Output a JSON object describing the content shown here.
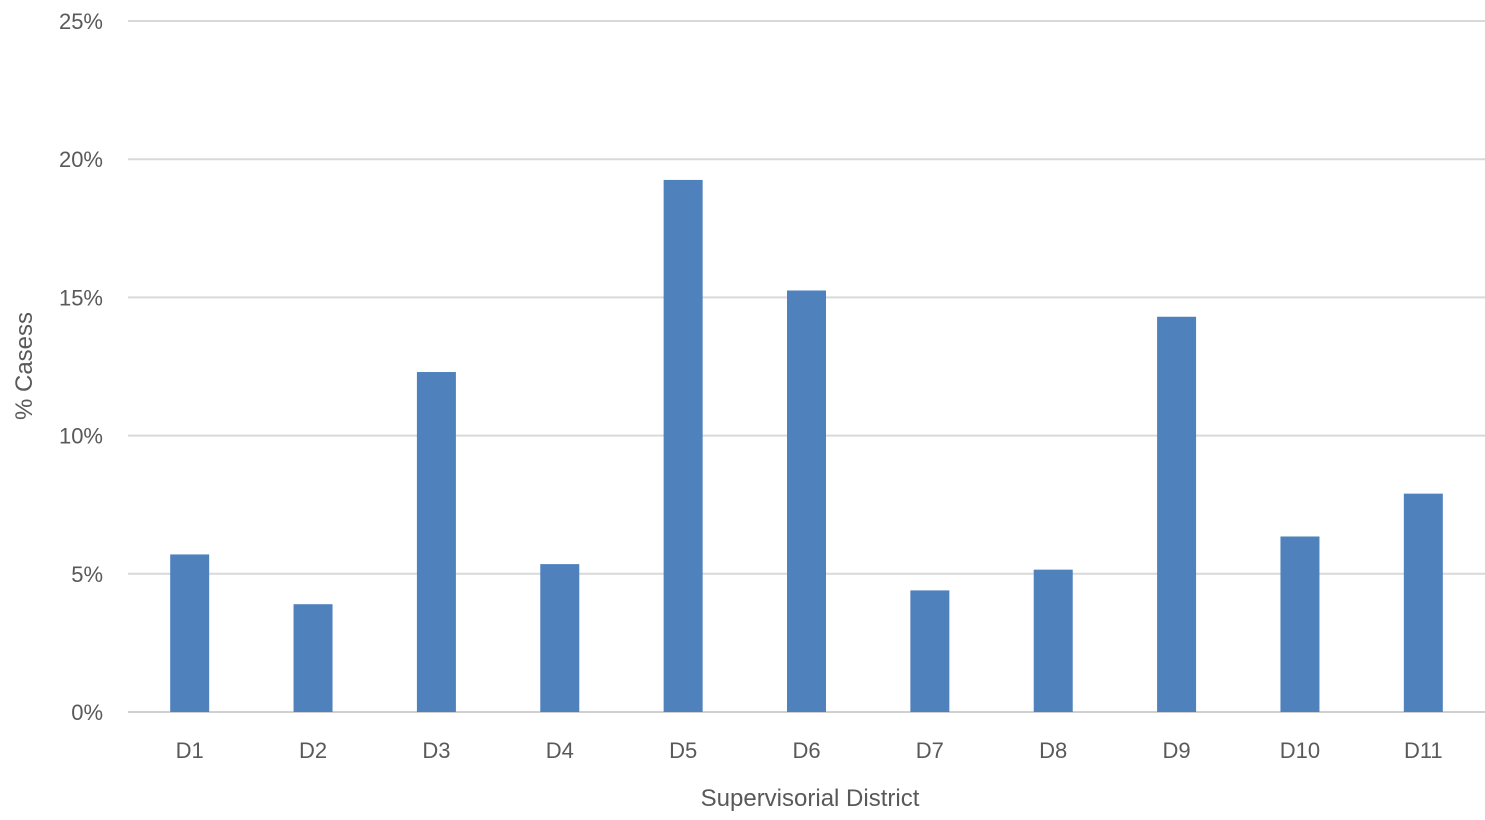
{
  "chart_data": {
    "type": "bar",
    "categories": [
      "D1",
      "D2",
      "D3",
      "D4",
      "D5",
      "D6",
      "D7",
      "D8",
      "D9",
      "D10",
      "D11"
    ],
    "series": [
      {
        "values": [
          5.7,
          3.9,
          12.3,
          5.35,
          19.25,
          15.25,
          4.4,
          5.15,
          14.3,
          6.35,
          7.9
        ],
        "color": "#4f81bd"
      }
    ],
    "ylim": [
      0,
      25
    ],
    "yticks": [
      0,
      5,
      10,
      15,
      20,
      25
    ],
    "ytick_labels": [
      "0%",
      "5%",
      "10%",
      "15%",
      "20%",
      "25%"
    ],
    "xlabel": "Supervisorial District",
    "ylabel": "% Casess",
    "grid": true,
    "legend": false,
    "colors": {
      "bar": "#4f81bd",
      "grid": "#d9d9d9",
      "text": "#595959"
    }
  }
}
